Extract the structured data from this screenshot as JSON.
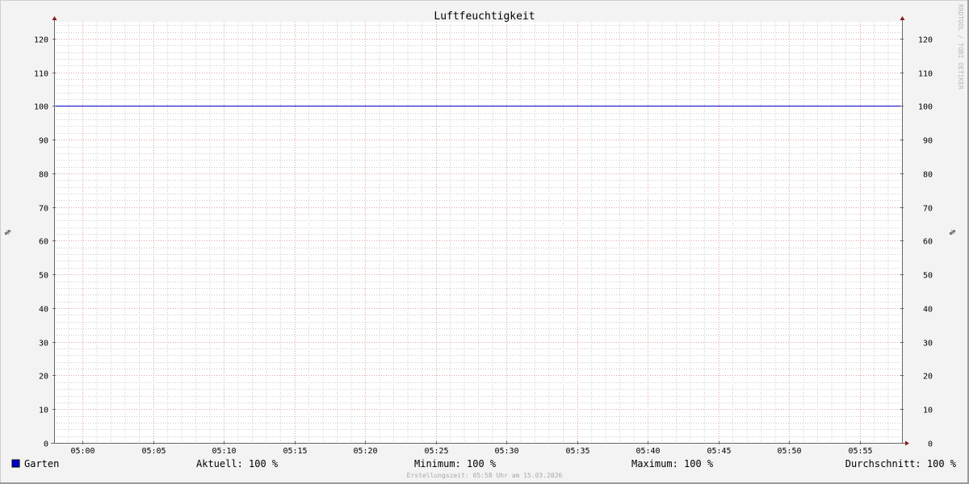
{
  "chart_data": {
    "type": "line",
    "title": "Luftfeuchtigkeit",
    "ylabel": "%",
    "ylabel_right": "%",
    "ylim": [
      0,
      125
    ],
    "yticks": [
      0,
      10,
      20,
      30,
      40,
      50,
      60,
      70,
      80,
      90,
      100,
      110,
      120
    ],
    "xlim": [
      "04:58",
      "05:58"
    ],
    "xticks": [
      "05:00",
      "05:05",
      "05:10",
      "05:15",
      "05:20",
      "05:25",
      "05:30",
      "05:35",
      "05:40",
      "05:45",
      "05:50",
      "05:55"
    ],
    "grid": true,
    "series": [
      {
        "name": "Garten",
        "color": "#0000cc",
        "x": [
          "04:58",
          "05:58"
        ],
        "values": [
          100,
          100
        ]
      }
    ],
    "legend": {
      "placement": "bottom-left",
      "name": "Garten",
      "aktuell": "Aktuell: 100 %",
      "minimum": "Minimum: 100 %",
      "maximum": "Maximum: 100 %",
      "durchschnitt": "Durchschnitt: 100 %"
    },
    "footer": "Erstellungszeit: 05:58 Uhr am 15.03.2026",
    "watermark": "RRDTOOL / TOBI OETIKER",
    "colors": {
      "background": "#f3f3f3",
      "plot": "#ffffff",
      "major_grid": "#e5a0a0",
      "minor_grid": "#cccccc",
      "axis_arrow": "#8b1a1a"
    }
  }
}
